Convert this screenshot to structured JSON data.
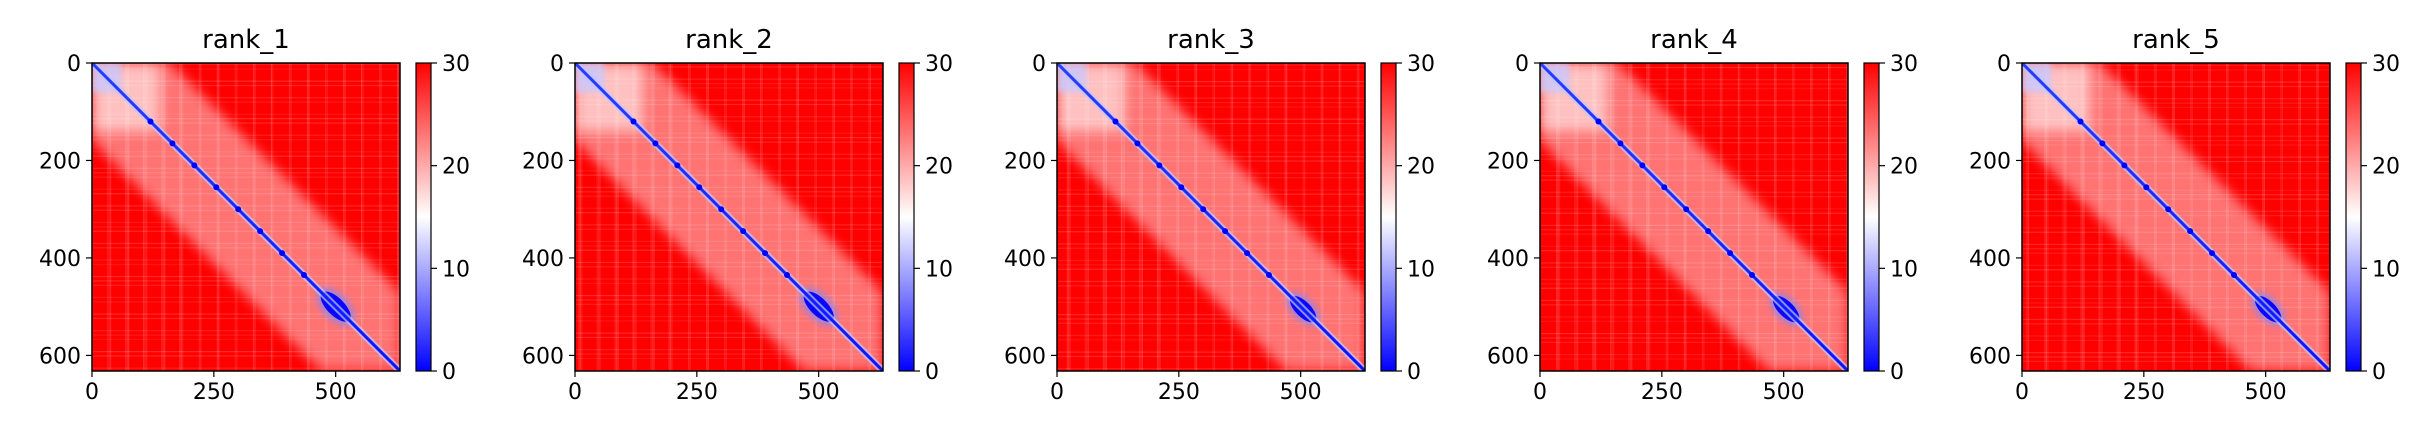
{
  "chart_data": [
    {
      "type": "heatmap",
      "title": "rank_1",
      "xlim": [
        0,
        632
      ],
      "ylim": [
        632,
        0
      ],
      "x_ticks": [
        0,
        250,
        500
      ],
      "y_ticks": [
        0,
        200,
        400,
        600
      ],
      "x_tick_labels": [
        "0",
        "250",
        "500"
      ],
      "y_tick_labels": [
        "0",
        "200",
        "400",
        "600"
      ],
      "colorbar": {
        "range": [
          0,
          30
        ],
        "ticks": [
          0,
          10,
          20,
          30
        ],
        "tick_labels": [
          "0",
          "10",
          "20",
          "30"
        ],
        "colormap": "bwr"
      },
      "blue_block_range": [
        460,
        540
      ]
    },
    {
      "type": "heatmap",
      "title": "rank_2",
      "xlim": [
        0,
        632
      ],
      "ylim": [
        632,
        0
      ],
      "x_ticks": [
        0,
        250,
        500
      ],
      "y_ticks": [
        0,
        200,
        400,
        600
      ],
      "x_tick_labels": [
        "0",
        "250",
        "500"
      ],
      "y_tick_labels": [
        "0",
        "200",
        "400",
        "600"
      ],
      "colorbar": {
        "range": [
          0,
          30
        ],
        "ticks": [
          0,
          10,
          20,
          30
        ],
        "tick_labels": [
          "0",
          "10",
          "20",
          "30"
        ],
        "colormap": "bwr"
      },
      "blue_block_range": [
        460,
        540
      ]
    },
    {
      "type": "heatmap",
      "title": "rank_3",
      "xlim": [
        0,
        632
      ],
      "ylim": [
        632,
        0
      ],
      "x_ticks": [
        0,
        250,
        500
      ],
      "y_ticks": [
        0,
        200,
        400,
        600
      ],
      "x_tick_labels": [
        "0",
        "250",
        "500"
      ],
      "y_tick_labels": [
        "0",
        "200",
        "400",
        "600"
      ],
      "colorbar": {
        "range": [
          0,
          30
        ],
        "ticks": [
          0,
          10,
          20,
          30
        ],
        "tick_labels": [
          "0",
          "10",
          "20",
          "30"
        ],
        "colormap": "bwr"
      },
      "blue_block_range": [
        470,
        540
      ]
    },
    {
      "type": "heatmap",
      "title": "rank_4",
      "xlim": [
        0,
        632
      ],
      "ylim": [
        632,
        0
      ],
      "x_ticks": [
        0,
        250,
        500
      ],
      "y_ticks": [
        0,
        200,
        400,
        600
      ],
      "x_tick_labels": [
        "0",
        "250",
        "500"
      ],
      "y_tick_labels": [
        "0",
        "200",
        "400",
        "600"
      ],
      "colorbar": {
        "range": [
          0,
          30
        ],
        "ticks": [
          0,
          10,
          20,
          30
        ],
        "tick_labels": [
          "0",
          "10",
          "20",
          "30"
        ],
        "colormap": "bwr"
      },
      "blue_block_range": [
        470,
        540
      ]
    },
    {
      "type": "heatmap",
      "title": "rank_5",
      "xlim": [
        0,
        632
      ],
      "ylim": [
        632,
        0
      ],
      "x_ticks": [
        0,
        250,
        500
      ],
      "y_ticks": [
        0,
        200,
        400,
        600
      ],
      "x_tick_labels": [
        "0",
        "250",
        "500"
      ],
      "y_tick_labels": [
        "0",
        "200",
        "400",
        "600"
      ],
      "colorbar": {
        "range": [
          0,
          30
        ],
        "ticks": [
          0,
          10,
          20,
          30
        ],
        "tick_labels": [
          "0",
          "10",
          "20",
          "30"
        ],
        "colormap": "bwr"
      },
      "blue_block_range": [
        470,
        540
      ]
    }
  ],
  "colors": {
    "high": "#ff0000",
    "mid": "#ffffff",
    "low": "#0000ff",
    "axis": "#000000"
  }
}
